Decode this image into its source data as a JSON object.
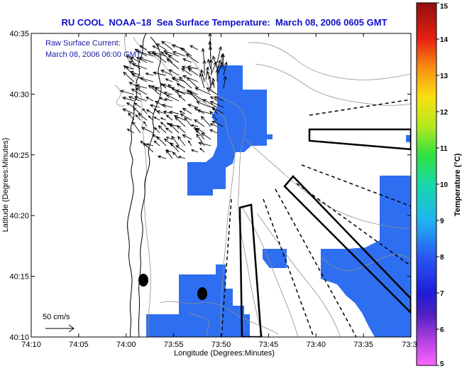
{
  "title": "RU COOL  NOAA–18  Sea Surface Temperature:  March 08, 2006 0605 GMT",
  "legend": {
    "line1": "Raw Surface Current:",
    "line2": "March 08, 2006 06:00 GMT"
  },
  "scale_label": "50 cm/s",
  "axes": {
    "xlabel": "Longitude (Degrees:Minutes)",
    "ylabel": "Latitude (Degrees:Minutes)",
    "x_ticks": [
      "74:10",
      "74:05",
      "74:00",
      "73:55",
      "73:50",
      "73:45",
      "73:40",
      "73:35",
      "73:3"
    ],
    "y_ticks": [
      "40:35",
      "40:30",
      "40:25",
      "40:20",
      "40:15",
      "40:10"
    ]
  },
  "colorbar": {
    "label": "Temperature (°C)",
    "ticks": [
      "15",
      "14",
      "13",
      "12",
      "11",
      "10",
      "9",
      "8",
      "7",
      "6",
      "5"
    ],
    "min": 5,
    "max": 15
  },
  "colors": {
    "sst_patch": "#2e6ef0",
    "land_outline": "#000000",
    "bathymetry": "#909090",
    "title": "#1010c8"
  }
}
